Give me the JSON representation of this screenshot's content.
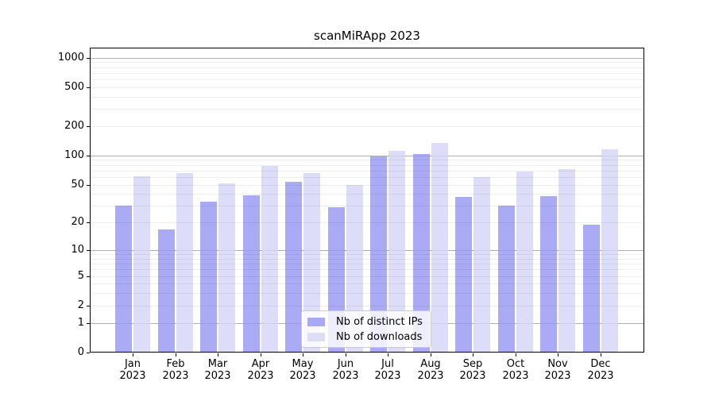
{
  "chart_data": {
    "type": "bar",
    "title": "scanMiRApp 2023",
    "xlabel": "",
    "ylabel": "",
    "categories": [
      "Jan",
      "Feb",
      "Mar",
      "Apr",
      "May",
      "Jun",
      "Jul",
      "Aug",
      "Sep",
      "Oct",
      "Nov",
      "Dec"
    ],
    "year_label": "2023",
    "series": [
      {
        "name": "Nb of distinct IPs",
        "swatch_color": "#a8a8f3",
        "fill": "rgba(150,150,243,0.8)",
        "values": [
          30,
          17,
          33,
          39,
          54,
          29,
          98,
          103,
          37,
          30,
          38,
          19
        ]
      },
      {
        "name": "Nb of downloads",
        "swatch_color": "#ddddf8",
        "fill": "rgba(213,213,247,0.8)",
        "values": [
          61,
          66,
          52,
          78,
          66,
          50,
          112,
          136,
          60,
          68,
          72,
          116
        ]
      }
    ],
    "yscale": "log10(value+1)",
    "ytick_labels": [
      0,
      1,
      2,
      5,
      10,
      20,
      50,
      100,
      200,
      500,
      1000
    ],
    "major_gridlines": [
      1,
      10,
      100,
      1000
    ],
    "minor_gridlines": [
      2,
      3,
      4,
      5,
      6,
      7,
      8,
      9,
      20,
      30,
      40,
      50,
      60,
      70,
      80,
      90,
      200,
      300,
      400,
      500,
      600,
      700,
      800,
      900
    ],
    "ylim": [
      0,
      1265
    ],
    "grid": true,
    "legend_position": "lower center",
    "colors": {
      "grid_major": "#b0b0b0",
      "axis": "#000000",
      "background": "#ffffff"
    }
  }
}
